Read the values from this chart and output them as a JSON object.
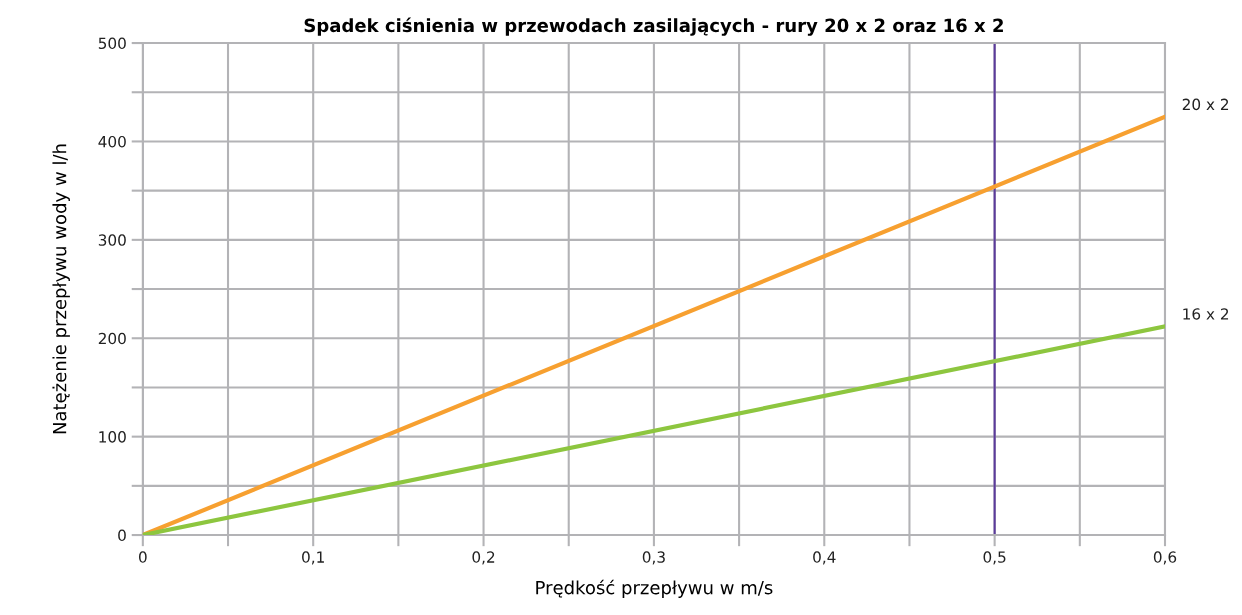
{
  "chart_data": {
    "type": "line",
    "title": "Spadek ciśnienia w przewodach zasilających - rury 20 x 2 oraz 16 x 2",
    "xlabel": "Prędkość przepływu w m/s",
    "ylabel": "Natężenie przepływu wody w l/h",
    "x": [
      0,
      0.6
    ],
    "series": [
      {
        "name": "20 x 2",
        "color": "#f7a030",
        "values": [
          0,
          425
        ]
      },
      {
        "name": "16 x 2",
        "color": "#8dc63f",
        "values": [
          0,
          212
        ]
      }
    ],
    "xlim": [
      0,
      0.6
    ],
    "ylim": [
      0,
      500
    ],
    "xticks": [
      0,
      {
        "value": 0.05,
        "label": null
      },
      {
        "value": 0.1,
        "label": "0,1"
      },
      {
        "value": 0.15,
        "label": null
      },
      {
        "value": 0.2,
        "label": "0,2"
      },
      {
        "value": 0.25,
        "label": null
      },
      {
        "value": 0.3,
        "label": "0,3"
      },
      {
        "value": 0.35,
        "label": null
      },
      {
        "value": 0.4,
        "label": "0,4"
      },
      {
        "value": 0.45,
        "label": null
      },
      {
        "value": 0.5,
        "label": "0,5"
      },
      {
        "value": 0.55,
        "label": null
      },
      {
        "value": 0.6,
        "label": "0,6"
      }
    ],
    "yticks": [
      0,
      {
        "value": 50,
        "label": null
      },
      100,
      {
        "value": 150,
        "label": null
      },
      200,
      {
        "value": 250,
        "label": null
      },
      300,
      {
        "value": 350,
        "label": null
      },
      400,
      {
        "value": 450,
        "label": null
      },
      500
    ],
    "grid": true,
    "legend": false,
    "marker": "none",
    "line_style": "solid",
    "ref_lines": [
      {
        "axis": "x",
        "value": 0.5,
        "color": "#5b3a9b"
      }
    ]
  }
}
